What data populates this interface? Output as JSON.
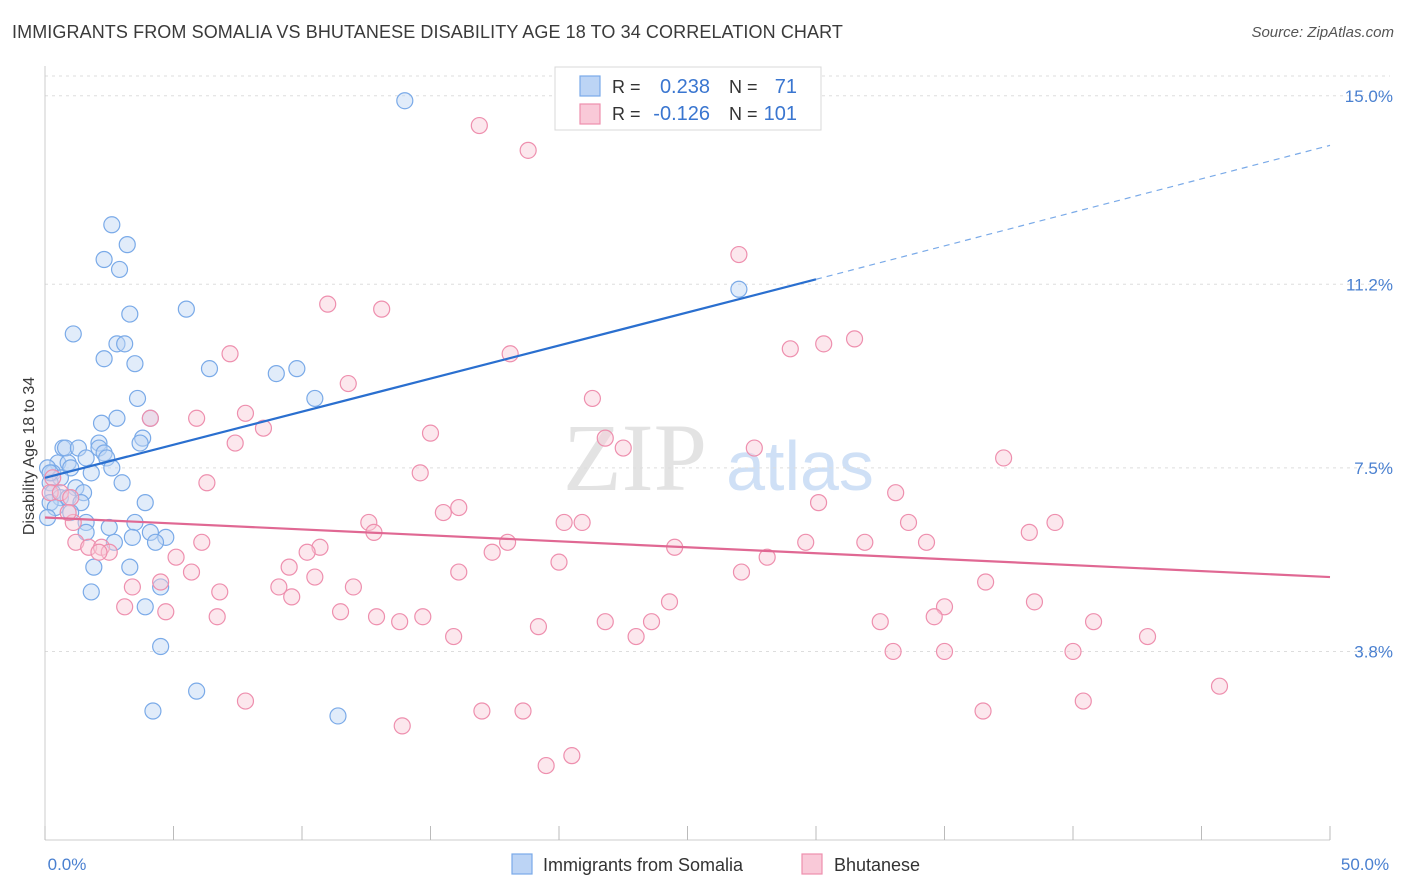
{
  "header": {
    "title": "IMMIGRANTS FROM SOMALIA VS BHUTANESE DISABILITY AGE 18 TO 34 CORRELATION CHART",
    "source": "Source: ZipAtlas.com"
  },
  "watermark": {
    "zip": "ZIP",
    "atlas": "atlas"
  },
  "colors": {
    "blue": "#7aaae8",
    "blue_fill": "#bcd4f5",
    "blue_line": "#2a6fcf",
    "pink": "#ee8fae",
    "pink_fill": "#f9c9d8",
    "pink_line": "#e06893",
    "tick_label": "#4a80d0",
    "grid": "#dddddd"
  },
  "legend_top": {
    "r_label": "R =",
    "n_label": "N =",
    "rows": [
      {
        "r": "0.238",
        "n": "71"
      },
      {
        "r": "-0.126",
        "n": "101"
      }
    ]
  },
  "chart_data": {
    "type": "scatter",
    "title": "IMMIGRANTS FROM SOMALIA VS BHUTANESE DISABILITY AGE 18 TO 34 CORRELATION CHART",
    "ylabel": "Disability Age 18 to 34",
    "xlabel": "",
    "xlim": [
      0,
      50
    ],
    "ylim": [
      0,
      15.6
    ],
    "x_tick_labels": [
      "0.0%",
      "50.0%"
    ],
    "y_ticks": [
      3.8,
      7.5,
      11.2,
      15.0
    ],
    "y_tick_labels": [
      "3.8%",
      "7.5%",
      "11.2%",
      "15.0%"
    ],
    "grid": "horizontal-dashed",
    "legend_placement": "bottom-center",
    "series": [
      {
        "name": "Immigrants from Somalia",
        "color": "blue",
        "trend": {
          "x0": 0,
          "y0": 7.3,
          "x1": 30,
          "y1": 11.3,
          "dashed_to_x": 50,
          "dashed_to_y": 14.0
        },
        "points": [
          [
            14.0,
            14.9
          ],
          [
            2.6,
            12.4
          ],
          [
            3.2,
            12.0
          ],
          [
            2.3,
            11.7
          ],
          [
            2.9,
            11.5
          ],
          [
            27.0,
            11.1
          ],
          [
            5.5,
            10.7
          ],
          [
            3.3,
            10.6
          ],
          [
            1.1,
            10.2
          ],
          [
            2.8,
            10.0
          ],
          [
            3.1,
            10.0
          ],
          [
            2.3,
            9.7
          ],
          [
            3.5,
            9.6
          ],
          [
            6.4,
            9.5
          ],
          [
            9.0,
            9.4
          ],
          [
            9.8,
            9.5
          ],
          [
            10.5,
            8.9
          ],
          [
            3.6,
            8.9
          ],
          [
            2.8,
            8.5
          ],
          [
            4.1,
            8.5
          ],
          [
            2.2,
            8.4
          ],
          [
            3.8,
            8.1
          ],
          [
            3.7,
            8.0
          ],
          [
            2.1,
            8.0
          ],
          [
            2.1,
            7.9
          ],
          [
            0.7,
            7.9
          ],
          [
            0.8,
            7.9
          ],
          [
            1.3,
            7.9
          ],
          [
            2.3,
            7.8
          ],
          [
            1.6,
            7.7
          ],
          [
            2.4,
            7.7
          ],
          [
            0.5,
            7.6
          ],
          [
            0.9,
            7.6
          ],
          [
            1.0,
            7.5
          ],
          [
            0.3,
            7.4
          ],
          [
            2.6,
            7.5
          ],
          [
            1.8,
            7.4
          ],
          [
            0.6,
            7.3
          ],
          [
            3.0,
            7.2
          ],
          [
            0.2,
            7.2
          ],
          [
            1.2,
            7.1
          ],
          [
            0.3,
            7.0
          ],
          [
            1.5,
            7.0
          ],
          [
            0.6,
            6.9
          ],
          [
            0.9,
            6.9
          ],
          [
            0.2,
            6.8
          ],
          [
            1.4,
            6.8
          ],
          [
            3.9,
            6.8
          ],
          [
            0.4,
            6.7
          ],
          [
            0.1,
            6.5
          ],
          [
            1.6,
            6.4
          ],
          [
            3.5,
            6.4
          ],
          [
            2.5,
            6.3
          ],
          [
            1.6,
            6.2
          ],
          [
            4.1,
            6.2
          ],
          [
            3.4,
            6.1
          ],
          [
            4.7,
            6.1
          ],
          [
            2.7,
            6.0
          ],
          [
            4.3,
            6.0
          ],
          [
            1.9,
            5.5
          ],
          [
            3.3,
            5.5
          ],
          [
            4.5,
            5.1
          ],
          [
            1.8,
            5.0
          ],
          [
            3.9,
            4.7
          ],
          [
            4.5,
            3.9
          ],
          [
            5.9,
            3.0
          ],
          [
            4.2,
            2.6
          ],
          [
            11.4,
            2.5
          ],
          [
            0.1,
            7.5
          ],
          [
            0.2,
            7.4
          ],
          [
            1.0,
            6.6
          ]
        ]
      },
      {
        "name": "Bhutanese",
        "color": "pink",
        "trend": {
          "x0": 0,
          "y0": 6.5,
          "x1": 50,
          "y1": 5.3
        },
        "points": [
          [
            16.9,
            14.4
          ],
          [
            18.8,
            13.9
          ],
          [
            27.0,
            11.8
          ],
          [
            11.0,
            10.8
          ],
          [
            13.1,
            10.7
          ],
          [
            31.5,
            10.1
          ],
          [
            30.3,
            10.0
          ],
          [
            29.0,
            9.9
          ],
          [
            7.2,
            9.8
          ],
          [
            18.1,
            9.8
          ],
          [
            11.8,
            9.2
          ],
          [
            21.3,
            8.9
          ],
          [
            7.8,
            8.6
          ],
          [
            4.1,
            8.5
          ],
          [
            5.9,
            8.5
          ],
          [
            8.5,
            8.3
          ],
          [
            15.0,
            8.2
          ],
          [
            21.8,
            8.1
          ],
          [
            7.4,
            8.0
          ],
          [
            22.5,
            7.9
          ],
          [
            27.6,
            7.9
          ],
          [
            37.3,
            7.7
          ],
          [
            14.6,
            7.4
          ],
          [
            0.3,
            7.3
          ],
          [
            6.3,
            7.2
          ],
          [
            0.2,
            7.0
          ],
          [
            33.1,
            7.0
          ],
          [
            0.6,
            7.0
          ],
          [
            1.0,
            6.9
          ],
          [
            30.1,
            6.8
          ],
          [
            16.1,
            6.7
          ],
          [
            15.5,
            6.6
          ],
          [
            1.1,
            6.4
          ],
          [
            12.6,
            6.4
          ],
          [
            20.2,
            6.4
          ],
          [
            20.9,
            6.4
          ],
          [
            33.6,
            6.4
          ],
          [
            39.3,
            6.4
          ],
          [
            12.8,
            6.2
          ],
          [
            38.3,
            6.2
          ],
          [
            1.2,
            6.0
          ],
          [
            6.1,
            6.0
          ],
          [
            10.7,
            5.9
          ],
          [
            18.0,
            6.0
          ],
          [
            24.5,
            5.9
          ],
          [
            29.6,
            6.0
          ],
          [
            31.9,
            6.0
          ],
          [
            34.3,
            6.0
          ],
          [
            1.7,
            5.9
          ],
          [
            2.2,
            5.9
          ],
          [
            10.2,
            5.8
          ],
          [
            17.4,
            5.8
          ],
          [
            2.5,
            5.8
          ],
          [
            5.1,
            5.7
          ],
          [
            28.1,
            5.7
          ],
          [
            20.0,
            5.6
          ],
          [
            9.5,
            5.5
          ],
          [
            16.1,
            5.4
          ],
          [
            5.7,
            5.4
          ],
          [
            27.1,
            5.4
          ],
          [
            10.5,
            5.3
          ],
          [
            4.5,
            5.2
          ],
          [
            3.4,
            5.1
          ],
          [
            9.1,
            5.1
          ],
          [
            12.0,
            5.1
          ],
          [
            36.6,
            5.2
          ],
          [
            6.8,
            5.0
          ],
          [
            9.6,
            4.9
          ],
          [
            24.3,
            4.8
          ],
          [
            38.5,
            4.8
          ],
          [
            3.1,
            4.7
          ],
          [
            35.0,
            4.7
          ],
          [
            11.5,
            4.6
          ],
          [
            4.7,
            4.6
          ],
          [
            6.7,
            4.5
          ],
          [
            12.9,
            4.5
          ],
          [
            14.7,
            4.5
          ],
          [
            34.6,
            4.5
          ],
          [
            13.8,
            4.4
          ],
          [
            21.8,
            4.4
          ],
          [
            23.6,
            4.4
          ],
          [
            32.5,
            4.4
          ],
          [
            40.8,
            4.4
          ],
          [
            19.2,
            4.3
          ],
          [
            23.0,
            4.1
          ],
          [
            15.9,
            4.1
          ],
          [
            42.9,
            4.1
          ],
          [
            33.0,
            3.8
          ],
          [
            35.0,
            3.8
          ],
          [
            40.0,
            3.8
          ],
          [
            45.7,
            3.1
          ],
          [
            7.8,
            2.8
          ],
          [
            17.0,
            2.6
          ],
          [
            18.6,
            2.6
          ],
          [
            36.5,
            2.6
          ],
          [
            40.4,
            2.8
          ],
          [
            13.9,
            2.3
          ],
          [
            19.5,
            1.5
          ],
          [
            20.5,
            1.7
          ],
          [
            2.1,
            5.8
          ],
          [
            0.9,
            6.6
          ]
        ]
      }
    ]
  }
}
